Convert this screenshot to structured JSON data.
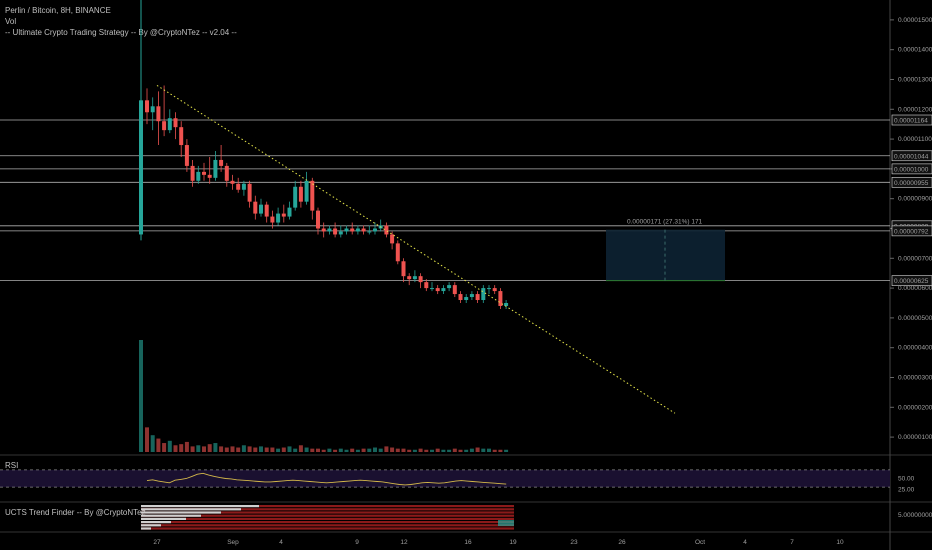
{
  "header": {
    "line1": "Perlin / Bitcoin, 8H, BINANCE",
    "line2": "Vol",
    "line3": "-- Ultimate Crypto Trading Strategy -- By @CryptoNTez -- v2.04 --"
  },
  "rsi_label": "RSI",
  "ucts_label": "UCTS Trend Finder -- By @CryptoNTez",
  "chart_data": {
    "type": "candlestick",
    "symbol": "Perlin / Bitcoin",
    "interval": "8H",
    "exchange": "BINANCE",
    "price_ticks": [
      "0.00001500",
      "0.00001400",
      "0.00001300",
      "0.00001200",
      "0.00001100",
      "0.00001000",
      "0.00000900",
      "0.00000800",
      "0.00000700",
      "0.00000600",
      "0.00000500",
      "0.00000400",
      "0.00000300",
      "0.00000200",
      "0.00000100"
    ],
    "price_range": [
      5e-07,
      1.56e-05
    ],
    "horizontal_levels": [
      {
        "value": 1.164e-05,
        "label": "0.00001164"
      },
      {
        "value": 1.044e-05,
        "label": "0.00001044"
      },
      {
        "value": 1e-05,
        "label": "0.00001000"
      },
      {
        "value": 9.55e-06,
        "label": "0.00000955"
      },
      {
        "value": 8.09e-06,
        "label": "0.00000809"
      },
      {
        "value": 7.92e-06,
        "label": "0.00000792"
      },
      {
        "value": 6.25e-06,
        "label": "0.00000625"
      }
    ],
    "x_ticks": [
      "27",
      "Sep",
      "4",
      "9",
      "12",
      "16",
      "19",
      "23",
      "26",
      "Oct",
      "4",
      "7",
      "10"
    ],
    "measure": {
      "label": "0.00000171 (27.31%) 171",
      "from": 6.25e-06,
      "to": 7.96e-06
    },
    "trendline": {
      "from": 1.28e-05,
      "to": 1.8e-06
    },
    "candles": [
      [
        1.23e-05,
        1.19e-05,
        1.27e-05,
        1.15e-05
      ],
      [
        1.19e-05,
        1.21e-05,
        1.24e-05,
        1.13e-05
      ],
      [
        1.21e-05,
        1.16e-05,
        1.26e-05,
        1.08e-05
      ],
      [
        1.16e-05,
        1.13e-05,
        1.28e-05,
        1.11e-05
      ],
      [
        1.13e-05,
        1.17e-05,
        1.2e-05,
        1.12e-05
      ],
      [
        1.17e-05,
        1.14e-05,
        1.19e-05,
        1.1e-05
      ],
      [
        1.14e-05,
        1.08e-05,
        1.16e-05,
        1.04e-05
      ],
      [
        1.08e-05,
        1.01e-05,
        1.1e-05,
        9.9e-06
      ],
      [
        1.01e-05,
        9.6e-06,
        1.03e-05,
        9.4e-06
      ],
      [
        9.6e-06,
        9.9e-06,
        1.01e-05,
        9.5e-06
      ],
      [
        9.9e-06,
        9.8e-06,
        1.02e-05,
        9.6e-06
      ],
      [
        9.8e-06,
        9.7e-06,
        1.04e-05,
        9.5e-06
      ],
      [
        9.7e-06,
        1.03e-05,
        1.06e-05,
        9.6e-06
      ],
      [
        1.03e-05,
        1.01e-05,
        1.08e-05,
        9.9e-06
      ],
      [
        1.01e-05,
        9.6e-06,
        1.02e-05,
        9.4e-06
      ],
      [
        9.6e-06,
        9.5e-06,
        9.8e-06,
        9.3e-06
      ],
      [
        9.5e-06,
        9.3e-06,
        9.7e-06,
        9.2e-06
      ],
      [
        9.3e-06,
        9.5e-06,
        9.6e-06,
        9.1e-06
      ],
      [
        9.5e-06,
        8.9e-06,
        9.6e-06,
        8.7e-06
      ],
      [
        8.9e-06,
        8.5e-06,
        9.1e-06,
        8.3e-06
      ],
      [
        8.5e-06,
        8.8e-06,
        9e-06,
        8.4e-06
      ],
      [
        8.8e-06,
        8.4e-06,
        8.9e-06,
        8.2e-06
      ],
      [
        8.4e-06,
        8.2e-06,
        8.6e-06,
        8e-06
      ],
      [
        8.2e-06,
        8.5e-06,
        8.7e-06,
        8.1e-06
      ],
      [
        8.5e-06,
        8.4e-06,
        8.8e-06,
        8.2e-06
      ],
      [
        8.4e-06,
        8.7e-06,
        8.9e-06,
        8.3e-06
      ],
      [
        8.7e-06,
        9.4e-06,
        9.6e-06,
        8.6e-06
      ],
      [
        9.4e-06,
        8.9e-06,
        9.6e-06,
        8.7e-06
      ],
      [
        8.9e-06,
        9.6e-06,
        9.9e-06,
        8.8e-06
      ],
      [
        9.6e-06,
        8.6e-06,
        9.7e-06,
        8.3e-06
      ],
      [
        8.6e-06,
        8e-06,
        8.7e-06,
        7.8e-06
      ],
      [
        8e-06,
        7.9e-06,
        8.2e-06,
        7.7e-06
      ],
      [
        7.9e-06,
        8e-06,
        8.1e-06,
        7.8e-06
      ],
      [
        8e-06,
        7.8e-06,
        8.2e-06,
        7.7e-06
      ],
      [
        7.8e-06,
        7.9e-06,
        8.1e-06,
        7.7e-06
      ],
      [
        7.9e-06,
        8e-06,
        8.1e-06,
        7.8e-06
      ],
      [
        8e-06,
        7.9e-06,
        8.2e-06,
        7.8e-06
      ],
      [
        7.9e-06,
        8e-06,
        8.1e-06,
        7.8e-06
      ],
      [
        8e-06,
        7.9e-06,
        8.1e-06,
        7.8e-06
      ],
      [
        7.9e-06,
        7.9e-06,
        8.1e-06,
        7.8e-06
      ],
      [
        7.9e-06,
        8e-06,
        8.2e-06,
        7.8e-06
      ],
      [
        8e-06,
        8.1e-06,
        8.3e-06,
        7.9e-06
      ],
      [
        8.1e-06,
        7.8e-06,
        8.2e-06,
        7.7e-06
      ],
      [
        7.8e-06,
        7.5e-06,
        7.9e-06,
        7.3e-06
      ],
      [
        7.5e-06,
        6.9e-06,
        7.6e-06,
        6.8e-06
      ],
      [
        6.9e-06,
        6.4e-06,
        7e-06,
        6.2e-06
      ],
      [
        6.4e-06,
        6.3e-06,
        6.5e-06,
        6.1e-06
      ],
      [
        6.3e-06,
        6.4e-06,
        6.6e-06,
        6.2e-06
      ],
      [
        6.4e-06,
        6.2e-06,
        6.5e-06,
        6e-06
      ],
      [
        6.2e-06,
        6e-06,
        6.3e-06,
        5.9e-06
      ],
      [
        6e-06,
        6e-06,
        6.2e-06,
        5.9e-06
      ],
      [
        6e-06,
        5.9e-06,
        6.1e-06,
        5.8e-06
      ],
      [
        5.9e-06,
        6e-06,
        6.1e-06,
        5.8e-06
      ],
      [
        6e-06,
        6.1e-06,
        6.2e-06,
        5.9e-06
      ],
      [
        6.1e-06,
        5.8e-06,
        6.2e-06,
        5.7e-06
      ],
      [
        5.8e-06,
        5.6e-06,
        5.9e-06,
        5.5e-06
      ],
      [
        5.6e-06,
        5.7e-06,
        5.8e-06,
        5.5e-06
      ],
      [
        5.7e-06,
        5.8e-06,
        5.9e-06,
        5.6e-06
      ],
      [
        5.8e-06,
        5.6e-06,
        5.9e-06,
        5.5e-06
      ],
      [
        5.6e-06,
        6e-06,
        6.1e-06,
        5.5e-06
      ],
      [
        6e-06,
        6e-06,
        6.1e-06,
        5.8e-06
      ],
      [
        6e-06,
        5.9e-06,
        6.1e-06,
        5.8e-06
      ],
      [
        5.9e-06,
        5.4e-06,
        6e-06,
        5.3e-06
      ],
      [
        5.4e-06,
        5.5e-06,
        5.6e-06,
        5.3e-06
      ]
    ],
    "first_candle": [
      7.8e-06,
      1.23e-05,
      1.57e-05,
      7.6e-06
    ],
    "volume_relative": [
      1.0,
      0.22,
      0.15,
      0.12,
      0.08,
      0.1,
      0.06,
      0.07,
      0.09,
      0.05,
      0.06,
      0.05,
      0.07,
      0.08,
      0.05,
      0.04,
      0.05,
      0.04,
      0.06,
      0.05,
      0.04,
      0.05,
      0.04,
      0.04,
      0.03,
      0.04,
      0.05,
      0.03,
      0.06,
      0.04,
      0.03,
      0.03,
      0.02,
      0.03,
      0.02,
      0.03,
      0.02,
      0.03,
      0.02,
      0.03,
      0.03,
      0.04,
      0.03,
      0.05,
      0.04,
      0.03,
      0.03,
      0.02,
      0.02,
      0.03,
      0.02,
      0.02,
      0.03,
      0.02,
      0.02,
      0.03,
      0.02,
      0.02,
      0.03,
      0.04,
      0.03,
      0.03,
      0.02,
      0.02,
      0.02
    ],
    "rsi": {
      "upper": 70,
      "lower": 30,
      "tick_labels": [
        "50.00",
        "25.00"
      ],
      "values": [
        45,
        47,
        44,
        42,
        40,
        46,
        48,
        50,
        55,
        60,
        62,
        58,
        55,
        52,
        50,
        49,
        47,
        46,
        45,
        44,
        43,
        42,
        42,
        43,
        44,
        45,
        46,
        45,
        44,
        43,
        42,
        41,
        40,
        41,
        42,
        43,
        44,
        45,
        46,
        45,
        44,
        43,
        42,
        40,
        38,
        36,
        35,
        36,
        38,
        40,
        41,
        40,
        39,
        40,
        42,
        44,
        45,
        44,
        43,
        42,
        41,
        40,
        39,
        38,
        37
      ]
    },
    "ucts": {
      "tick_label": "5.00000000"
    }
  },
  "colors": {
    "up": "#26a69a",
    "down": "#ef5350",
    "trend": "#e6e64a",
    "level": "#b0b0b0",
    "rsi_bg": "#1a1030",
    "rsi_line": "#d4b84a",
    "ucts_red": "#8b1a1a"
  }
}
